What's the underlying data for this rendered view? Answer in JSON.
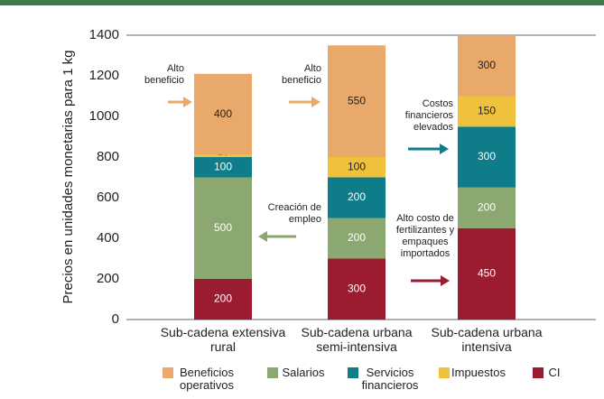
{
  "chart_data": {
    "type": "bar",
    "stacked": true,
    "ylabel": "Precios en unidades monetarias para 1 kg",
    "categories": [
      "Sub-cadena extensiva rural",
      "Sub-cadena urbana semi-intensiva",
      "Sub-cadena urbana intensiva"
    ],
    "series": [
      {
        "name": "CI",
        "color": "#9b1b30",
        "values": [
          200,
          300,
          450
        ]
      },
      {
        "name": "Salarios",
        "color": "#8aa870",
        "values": [
          500,
          200,
          200
        ]
      },
      {
        "name": "Servicios financieros",
        "color": "#0f7c8a",
        "values": [
          100,
          200,
          300
        ]
      },
      {
        "name": "Impuestos",
        "color": "#f0c23c",
        "values": [
          10,
          100,
          150
        ]
      },
      {
        "name": "Beneficios operativos",
        "color": "#e8a96b",
        "values": [
          400,
          550,
          300
        ]
      }
    ],
    "ylim": [
      0,
      1400
    ],
    "yticks": [
      0,
      200,
      400,
      600,
      800,
      1000,
      1200,
      1400
    ],
    "annotations": [
      "Alto beneficio",
      "Alto beneficio",
      "Costos financieros elevados",
      "Creación de empleo",
      "Alto costo de fertilizantes y empaques importados"
    ]
  }
}
